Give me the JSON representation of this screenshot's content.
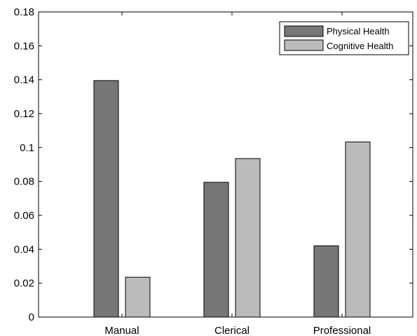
{
  "chart_data": {
    "type": "bar",
    "title": "",
    "xlabel": "",
    "ylabel": "",
    "categories": [
      "Manual",
      "Clerical",
      "Professional"
    ],
    "series": [
      {
        "name": "Physical Health",
        "values": [
          0.1395,
          0.0795,
          0.042
        ],
        "color": "#777777"
      },
      {
        "name": "Cognitive Health",
        "values": [
          0.0235,
          0.0935,
          0.1033
        ],
        "color": "#bbbbbb"
      }
    ],
    "ylim": [
      0,
      0.18
    ],
    "yticks": [
      0,
      0.02,
      0.04,
      0.06,
      0.08,
      0.1,
      0.12,
      0.14,
      0.16,
      0.18
    ],
    "ytick_labels": [
      "0",
      "0.02",
      "0.04",
      "0.06",
      "0.08",
      "0.1",
      "0.12",
      "0.14",
      "0.16",
      "0.18"
    ],
    "grid": false,
    "legend": "top-right"
  }
}
